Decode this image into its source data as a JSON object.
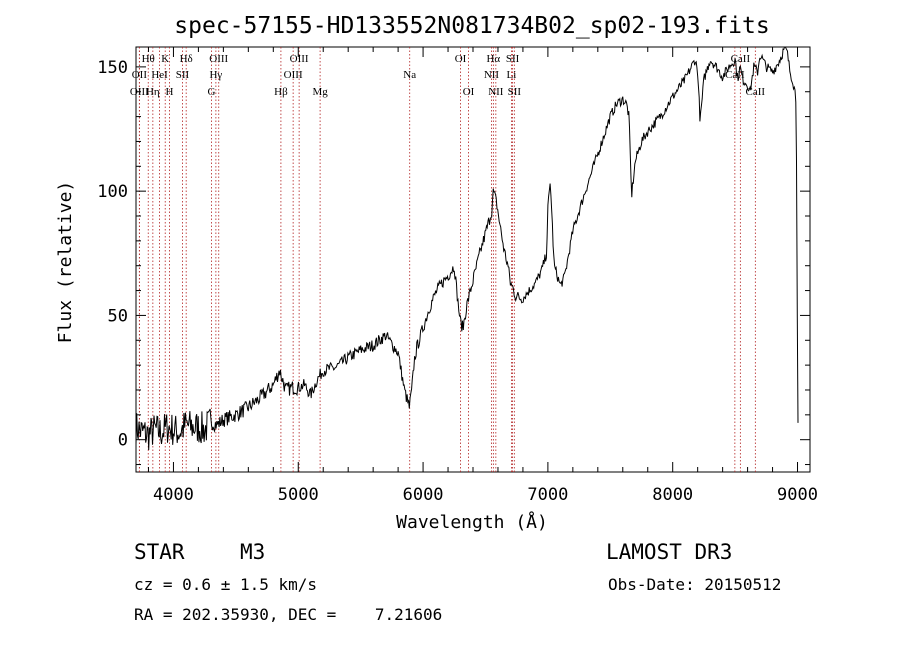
{
  "chart_data": {
    "type": "line",
    "title": "spec-57155-HD133552N081734B02_sp02-193.fits",
    "xlabel": "Wavelength (Å)",
    "ylabel": "Flux (relative)",
    "xlim": [
      3700,
      9100
    ],
    "ylim": [
      -13,
      158
    ],
    "xticks": [
      4000,
      5000,
      6000,
      7000,
      8000,
      9000
    ],
    "yticks": [
      0,
      50,
      100,
      150
    ],
    "series": [
      {
        "name": "spectrum",
        "color": "#000000",
        "x": [
          3700,
          3750,
          3800,
          3850,
          3900,
          3950,
          4000,
          4050,
          4100,
          4150,
          4200,
          4250,
          4300,
          4350,
          4400,
          4500,
          4600,
          4700,
          4800,
          4850,
          4900,
          4950,
          5000,
          5050,
          5100,
          5150,
          5200,
          5300,
          5400,
          5500,
          5600,
          5700,
          5800,
          5850,
          5890,
          5910,
          5930,
          5950,
          6000,
          6050,
          6100,
          6150,
          6200,
          6250,
          6280,
          6300,
          6320,
          6350,
          6400,
          6450,
          6500,
          6550,
          6563,
          6590,
          6620,
          6650,
          6680,
          6700,
          6720,
          6740,
          6780,
          6800,
          6850,
          6900,
          6950,
          6990,
          7000,
          7020,
          7050,
          7100,
          7130,
          7150,
          7200,
          7300,
          7400,
          7500,
          7550,
          7600,
          7630,
          7650,
          7670,
          7700,
          7750,
          7800,
          7900,
          8000,
          8100,
          8150,
          8180,
          8200,
          8220,
          8250,
          8300,
          8350,
          8400,
          8450,
          8500,
          8520,
          8540,
          8560,
          8600,
          8620,
          8650,
          8680,
          8700,
          8750,
          8800,
          8850,
          8900,
          8920,
          8940,
          8960,
          8980,
          8990,
          9000,
          9005
        ],
        "y": [
          5,
          3,
          2,
          4,
          3,
          5,
          4,
          3,
          6,
          5,
          5,
          4,
          7,
          6,
          8,
          10,
          13,
          17,
          22,
          28,
          20,
          21,
          21,
          22,
          18,
          24,
          28,
          29,
          33,
          36,
          38,
          42,
          35,
          20,
          13,
          20,
          32,
          37,
          45,
          53,
          59,
          63,
          66,
          70,
          55,
          47,
          45,
          54,
          64,
          74,
          83,
          92,
          100,
          95,
          85,
          76,
          70,
          63,
          61,
          58,
          57,
          57,
          60,
          63,
          68,
          75,
          93,
          104,
          70,
          62,
          65,
          70,
          84,
          100,
          115,
          130,
          135,
          137,
          135,
          130,
          98,
          112,
          120,
          124,
          130,
          138,
          145,
          150,
          153,
          148,
          128,
          145,
          153,
          150,
          146,
          150,
          153,
          145,
          150,
          145,
          143,
          140,
          150,
          148,
          155,
          150,
          148,
          152,
          158,
          155,
          148,
          145,
          140,
          135,
          30,
          0
        ]
      }
    ],
    "lines": [
      {
        "label": "Hθ",
        "wl": 3798,
        "row": 1
      },
      {
        "label": "K",
        "wl": 3934,
        "row": 1
      },
      {
        "label": "Hδ",
        "wl": 4102,
        "row": 1
      },
      {
        "label": "OIII",
        "wl": 4363,
        "row": 1
      },
      {
        "label": "OIII",
        "wl": 5007,
        "row": 1
      },
      {
        "label": "OI",
        "wl": 6300,
        "row": 1
      },
      {
        "label": "Hα",
        "wl": 6563,
        "row": 1
      },
      {
        "label": "SII",
        "wl": 6717,
        "row": 1
      },
      {
        "label": "CaII",
        "wl": 8542,
        "row": 1
      },
      {
        "label": "OII",
        "wl": 3727,
        "row": 2
      },
      {
        "label": "HeI",
        "wl": 3889,
        "row": 2
      },
      {
        "label": "SII",
        "wl": 4072,
        "row": 2
      },
      {
        "label": "Hγ",
        "wl": 4340,
        "row": 2
      },
      {
        "label": "OIII",
        "wl": 4959,
        "row": 2
      },
      {
        "label": "Na",
        "wl": 5893,
        "row": 2
      },
      {
        "label": "NII",
        "wl": 6548,
        "row": 2
      },
      {
        "label": "Li",
        "wl": 6708,
        "row": 2
      },
      {
        "label": "CaII",
        "wl": 8498,
        "row": 2
      },
      {
        "label": "OIII",
        "wl": 3727,
        "row": 3
      },
      {
        "label": "Hη",
        "wl": 3835,
        "row": 3
      },
      {
        "label": "H",
        "wl": 3968,
        "row": 3
      },
      {
        "label": "G",
        "wl": 4305,
        "row": 3
      },
      {
        "label": "Hβ",
        "wl": 4861,
        "row": 3
      },
      {
        "label": "Mg",
        "wl": 5175,
        "row": 3
      },
      {
        "label": "OI",
        "wl": 6364,
        "row": 3
      },
      {
        "label": "NII",
        "wl": 6583,
        "row": 3
      },
      {
        "label": "SII",
        "wl": 6731,
        "row": 3
      },
      {
        "label": "CaII",
        "wl": 8662,
        "row": 3
      }
    ]
  },
  "info": {
    "class": "STAR",
    "subclass": "M3",
    "survey": "LAMOST DR3",
    "cz": "cz = 0.6 ± 1.5 km/s",
    "obs_date": "Obs-Date: 20150512",
    "coords": "RA = 202.35930, DEC =    7.21606"
  }
}
